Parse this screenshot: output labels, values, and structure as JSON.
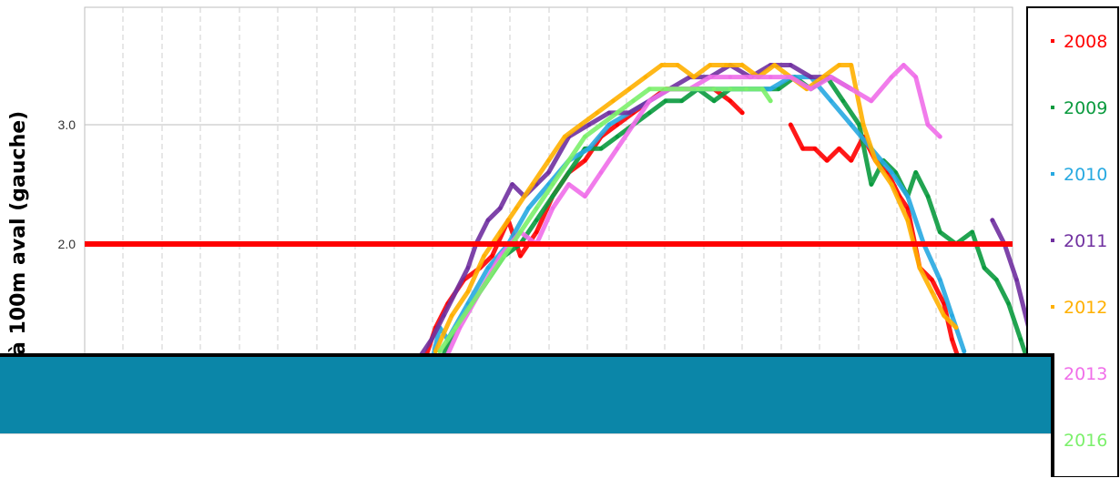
{
  "chart_data": {
    "type": "scatter",
    "ylabel": "à 100m  aval (gauche)",
    "y_ticks": [
      "2.0",
      "3.0"
    ],
    "y_tick_values": [
      2.0,
      3.0
    ],
    "x_ticks": [],
    "grid": true,
    "legend_placement": "right",
    "threshold": {
      "value": 2.0,
      "color": "#ff0000"
    },
    "x_range": [
      0,
      23
    ],
    "series": [
      {
        "name": "2008",
        "color": "#ff0000",
        "points": [
          [
            8.4,
            1.0
          ],
          [
            8.7,
            1.3
          ],
          [
            9.0,
            1.5
          ],
          [
            9.4,
            1.7
          ],
          [
            9.8,
            1.8
          ],
          [
            10.1,
            1.9
          ],
          [
            10.5,
            2.2
          ],
          [
            10.8,
            1.9
          ],
          [
            11.2,
            2.1
          ],
          [
            11.6,
            2.4
          ],
          [
            12.0,
            2.6
          ],
          [
            12.4,
            2.7
          ],
          [
            12.8,
            2.9
          ],
          [
            13.2,
            3.0
          ],
          [
            13.6,
            3.1
          ],
          [
            14.0,
            3.2
          ],
          [
            14.4,
            3.3
          ],
          [
            14.8,
            3.3
          ],
          [
            15.2,
            3.3
          ],
          [
            15.6,
            3.3
          ],
          [
            16.0,
            3.2
          ],
          [
            16.3,
            3.1
          ],
          [
            17.5,
            3.0
          ],
          [
            17.8,
            2.8
          ],
          [
            18.1,
            2.8
          ],
          [
            18.4,
            2.7
          ],
          [
            18.7,
            2.8
          ],
          [
            19.0,
            2.7
          ],
          [
            19.3,
            2.9
          ],
          [
            19.6,
            2.7
          ],
          [
            19.9,
            2.6
          ],
          [
            20.2,
            2.4
          ],
          [
            20.4,
            2.3
          ],
          [
            20.7,
            1.8
          ],
          [
            21.0,
            1.7
          ],
          [
            21.3,
            1.5
          ],
          [
            21.5,
            1.2
          ],
          [
            21.7,
            1.0
          ]
        ]
      },
      {
        "name": "2009",
        "color": "#0a9a3e",
        "points": [
          [
            8.8,
            1.0
          ],
          [
            9.2,
            1.3
          ],
          [
            9.6,
            1.5
          ],
          [
            10.0,
            1.7
          ],
          [
            10.4,
            1.9
          ],
          [
            10.8,
            2.0
          ],
          [
            11.2,
            2.2
          ],
          [
            11.6,
            2.4
          ],
          [
            12.0,
            2.6
          ],
          [
            12.4,
            2.8
          ],
          [
            12.8,
            2.8
          ],
          [
            13.2,
            2.9
          ],
          [
            13.6,
            3.0
          ],
          [
            14.0,
            3.1
          ],
          [
            14.4,
            3.2
          ],
          [
            14.8,
            3.2
          ],
          [
            15.2,
            3.3
          ],
          [
            15.6,
            3.2
          ],
          [
            16.0,
            3.3
          ],
          [
            16.4,
            3.3
          ],
          [
            16.8,
            3.3
          ],
          [
            17.2,
            3.3
          ],
          [
            17.6,
            3.4
          ],
          [
            18.0,
            3.3
          ],
          [
            18.4,
            3.4
          ],
          [
            18.8,
            3.2
          ],
          [
            19.2,
            3.0
          ],
          [
            19.5,
            2.5
          ],
          [
            19.8,
            2.7
          ],
          [
            20.1,
            2.6
          ],
          [
            20.4,
            2.4
          ],
          [
            20.6,
            2.6
          ],
          [
            20.9,
            2.4
          ],
          [
            21.2,
            2.1
          ],
          [
            21.6,
            2.0
          ],
          [
            22.0,
            2.1
          ],
          [
            22.3,
            1.8
          ],
          [
            22.6,
            1.7
          ],
          [
            22.9,
            1.5
          ],
          [
            23.2,
            1.2
          ],
          [
            23.4,
            1.0
          ]
        ]
      },
      {
        "name": "2010",
        "color": "#27a9e1",
        "points": [
          [
            8.6,
            1.0
          ],
          [
            8.8,
            1.3
          ],
          [
            9.0,
            1.2
          ],
          [
            9.5,
            1.5
          ],
          [
            10.0,
            1.8
          ],
          [
            10.5,
            2.0
          ],
          [
            11.0,
            2.3
          ],
          [
            11.5,
            2.5
          ],
          [
            12.0,
            2.7
          ],
          [
            12.5,
            2.8
          ],
          [
            13.0,
            3.0
          ],
          [
            13.5,
            3.1
          ],
          [
            14.0,
            3.2
          ],
          [
            14.5,
            3.3
          ],
          [
            15.0,
            3.3
          ],
          [
            15.5,
            3.3
          ],
          [
            16.0,
            3.3
          ],
          [
            16.5,
            3.3
          ],
          [
            17.0,
            3.3
          ],
          [
            17.5,
            3.4
          ],
          [
            18.0,
            3.4
          ],
          [
            18.5,
            3.2
          ],
          [
            19.0,
            3.0
          ],
          [
            19.5,
            2.8
          ],
          [
            20.0,
            2.6
          ],
          [
            20.4,
            2.4
          ],
          [
            20.8,
            2.0
          ],
          [
            21.2,
            1.7
          ],
          [
            21.5,
            1.4
          ],
          [
            21.8,
            1.1
          ]
        ]
      },
      {
        "name": "2011",
        "color": "#7030a0",
        "points": [
          [
            8.2,
            1.0
          ],
          [
            8.6,
            1.2
          ],
          [
            8.9,
            1.4
          ],
          [
            9.2,
            1.6
          ],
          [
            9.5,
            1.8
          ],
          [
            9.7,
            2.0
          ],
          [
            10.0,
            2.2
          ],
          [
            10.3,
            2.3
          ],
          [
            10.6,
            2.5
          ],
          [
            10.9,
            2.4
          ],
          [
            11.2,
            2.5
          ],
          [
            11.5,
            2.6
          ],
          [
            12.0,
            2.9
          ],
          [
            12.5,
            3.0
          ],
          [
            13.0,
            3.1
          ],
          [
            13.5,
            3.1
          ],
          [
            14.0,
            3.2
          ],
          [
            14.5,
            3.3
          ],
          [
            15.0,
            3.4
          ],
          [
            15.5,
            3.4
          ],
          [
            16.0,
            3.5
          ],
          [
            16.5,
            3.4
          ],
          [
            17.0,
            3.5
          ],
          [
            17.5,
            3.5
          ],
          [
            18.0,
            3.4
          ],
          [
            18.5,
            3.4
          ],
          [
            19.0,
            3.3
          ],
          [
            22.5,
            2.2
          ],
          [
            22.8,
            2.0
          ],
          [
            23.1,
            1.7
          ],
          [
            23.4,
            1.3
          ],
          [
            23.6,
            1.1
          ]
        ]
      },
      {
        "name": "2012",
        "color": "#ffb000",
        "points": [
          [
            8.7,
            1.1
          ],
          [
            9.1,
            1.4
          ],
          [
            9.5,
            1.6
          ],
          [
            9.9,
            1.9
          ],
          [
            10.3,
            2.1
          ],
          [
            10.7,
            2.3
          ],
          [
            11.1,
            2.5
          ],
          [
            11.5,
            2.7
          ],
          [
            11.9,
            2.9
          ],
          [
            12.3,
            3.0
          ],
          [
            12.7,
            3.1
          ],
          [
            13.1,
            3.2
          ],
          [
            13.5,
            3.3
          ],
          [
            13.9,
            3.4
          ],
          [
            14.3,
            3.5
          ],
          [
            14.7,
            3.5
          ],
          [
            15.1,
            3.4
          ],
          [
            15.5,
            3.5
          ],
          [
            15.9,
            3.5
          ],
          [
            16.3,
            3.5
          ],
          [
            16.7,
            3.4
          ],
          [
            17.1,
            3.5
          ],
          [
            17.5,
            3.4
          ],
          [
            17.9,
            3.3
          ],
          [
            18.3,
            3.4
          ],
          [
            18.7,
            3.5
          ],
          [
            19.0,
            3.5
          ],
          [
            19.3,
            3.0
          ],
          [
            19.6,
            2.7
          ],
          [
            20.0,
            2.5
          ],
          [
            20.4,
            2.2
          ],
          [
            20.7,
            1.8
          ],
          [
            21.0,
            1.6
          ],
          [
            21.3,
            1.4
          ],
          [
            21.6,
            1.3
          ]
        ]
      },
      {
        "name": "2013",
        "color": "#f06ee9",
        "points": [
          [
            8.9,
            1.0
          ],
          [
            9.3,
            1.3
          ],
          [
            9.8,
            1.6
          ],
          [
            10.3,
            1.9
          ],
          [
            10.8,
            2.1
          ],
          [
            11.2,
            2.0
          ],
          [
            11.6,
            2.3
          ],
          [
            12.0,
            2.5
          ],
          [
            12.4,
            2.4
          ],
          [
            12.8,
            2.6
          ],
          [
            13.2,
            2.8
          ],
          [
            13.6,
            3.0
          ],
          [
            14.0,
            3.2
          ],
          [
            14.5,
            3.3
          ],
          [
            15.0,
            3.3
          ],
          [
            15.5,
            3.4
          ],
          [
            16.0,
            3.4
          ],
          [
            16.5,
            3.4
          ],
          [
            17.0,
            3.4
          ],
          [
            17.5,
            3.4
          ],
          [
            18.0,
            3.3
          ],
          [
            18.5,
            3.4
          ],
          [
            19.0,
            3.3
          ],
          [
            19.5,
            3.2
          ],
          [
            20.0,
            3.4
          ],
          [
            20.3,
            3.5
          ],
          [
            20.6,
            3.4
          ],
          [
            20.9,
            3.0
          ],
          [
            21.2,
            2.9
          ]
        ]
      },
      {
        "name": "2016",
        "color": "#7cf06c",
        "points": [
          [
            8.8,
            1.1
          ],
          [
            9.2,
            1.3
          ],
          [
            9.6,
            1.5
          ],
          [
            10.0,
            1.7
          ],
          [
            10.4,
            1.9
          ],
          [
            10.8,
            2.1
          ],
          [
            11.2,
            2.3
          ],
          [
            11.6,
            2.5
          ],
          [
            12.0,
            2.7
          ],
          [
            12.4,
            2.9
          ],
          [
            12.8,
            3.0
          ],
          [
            13.2,
            3.1
          ],
          [
            13.6,
            3.2
          ],
          [
            14.0,
            3.3
          ],
          [
            14.4,
            3.3
          ],
          [
            14.8,
            3.3
          ],
          [
            15.2,
            3.3
          ],
          [
            15.6,
            3.3
          ],
          [
            16.0,
            3.3
          ],
          [
            16.4,
            3.3
          ],
          [
            16.8,
            3.3
          ],
          [
            17.0,
            3.2
          ]
        ]
      }
    ]
  }
}
